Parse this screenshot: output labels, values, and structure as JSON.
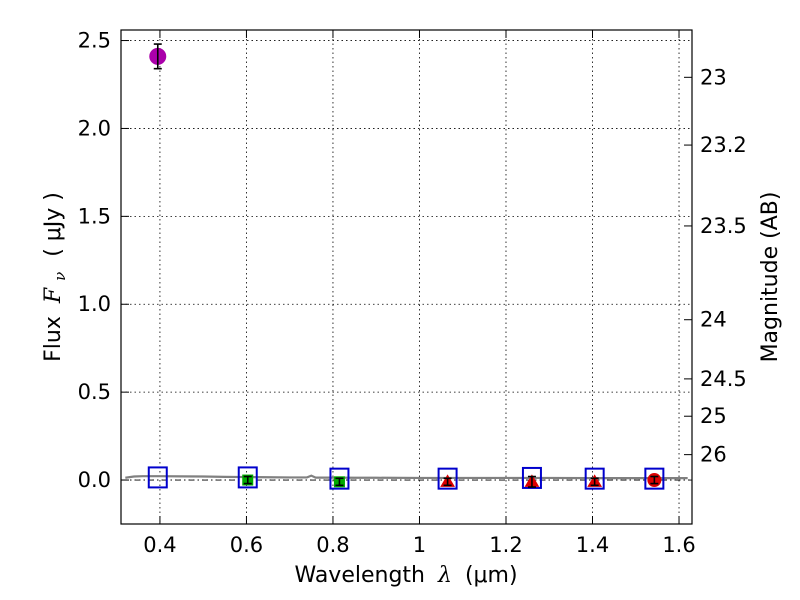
{
  "chart_data": {
    "type": "scatter",
    "xlabel": "Wavelength",
    "xlabel_symbol": "λ",
    "xlabel_unit": "(μm)",
    "ylabel": "Flux",
    "ylabel_symbol": "F",
    "ylabel_subscript": "ν",
    "ylabel_unit": "( μJy )",
    "y2label": "Magnitude (AB)",
    "xlim": [
      0.31,
      1.63
    ],
    "ylim": [
      -0.25,
      2.56
    ],
    "grid": true,
    "x_ticks": [
      {
        "value": 0.4,
        "label": "0.4"
      },
      {
        "value": 0.6,
        "label": "0.6"
      },
      {
        "value": 0.8,
        "label": "0.8"
      },
      {
        "value": 1.0,
        "label": "1"
      },
      {
        "value": 1.2,
        "label": "1.2"
      },
      {
        "value": 1.4,
        "label": "1.4"
      },
      {
        "value": 1.6,
        "label": "1.6"
      }
    ],
    "y_ticks": [
      {
        "value": 0.0,
        "label": "0.0"
      },
      {
        "value": 0.5,
        "label": "0.5"
      },
      {
        "value": 1.0,
        "label": "1.0"
      },
      {
        "value": 1.5,
        "label": "1.5"
      },
      {
        "value": 2.0,
        "label": "2.0"
      },
      {
        "value": 2.5,
        "label": "2.5"
      }
    ],
    "y2_ticks": [
      {
        "mag": 23,
        "label": "23"
      },
      {
        "mag": 23.2,
        "label": "23.2"
      },
      {
        "mag": 23.5,
        "label": "23.5"
      },
      {
        "mag": 24,
        "label": "24"
      },
      {
        "mag": 24.5,
        "label": "24.5"
      },
      {
        "mag": 25,
        "label": "25"
      },
      {
        "mag": 26,
        "label": "26"
      }
    ],
    "model_sed": {
      "color": "#808080",
      "x": [
        0.32,
        0.34,
        0.36,
        0.38,
        0.4,
        0.45,
        0.5,
        0.55,
        0.6,
        0.65,
        0.7,
        0.74,
        0.75,
        0.76,
        0.8,
        0.85,
        0.9,
        1.0,
        1.07,
        1.1,
        1.2,
        1.26,
        1.3,
        1.4,
        1.41,
        1.5,
        1.54,
        1.6,
        1.62
      ],
      "y": [
        0.013,
        0.02,
        0.022,
        0.022,
        0.022,
        0.021,
        0.02,
        0.018,
        0.017,
        0.016,
        0.015,
        0.015,
        0.025,
        0.014,
        0.014,
        0.013,
        0.013,
        0.012,
        0.012,
        0.012,
        0.012,
        0.012,
        0.012,
        0.011,
        0.011,
        0.011,
        0.011,
        0.011,
        0.011
      ]
    },
    "zero_line": {
      "y": 0.0,
      "style": "dash-dot",
      "color": "#000000"
    },
    "model_points": {
      "marker": "square-open",
      "color": "#0000cc",
      "x": [
        0.395,
        0.603,
        0.815,
        1.065,
        1.26,
        1.405,
        1.543
      ],
      "y": [
        0.015,
        0.015,
        0.008,
        0.008,
        0.012,
        0.008,
        0.008
      ]
    },
    "observed": [
      {
        "x": 0.395,
        "y": 2.41,
        "err": 0.07,
        "marker": "circle",
        "color": "#aa00aa",
        "size": "large"
      },
      {
        "x": 0.603,
        "y": 0.0,
        "err": 0.02,
        "marker": "square",
        "color": "#00aa00",
        "size": "small"
      },
      {
        "x": 0.815,
        "y": -0.01,
        "err": 0.02,
        "marker": "square",
        "color": "#00aa00",
        "size": "small"
      },
      {
        "x": 1.065,
        "y": -0.01,
        "err": 0.02,
        "marker": "triangle",
        "color": "#dd0000",
        "size": "small"
      },
      {
        "x": 1.26,
        "y": -0.01,
        "err": 0.03,
        "marker": "triangle",
        "color": "#dd0000",
        "size": "small"
      },
      {
        "x": 1.405,
        "y": -0.01,
        "err": 0.02,
        "marker": "triangle",
        "color": "#dd0000",
        "size": "small"
      },
      {
        "x": 1.543,
        "y": 0.0,
        "err": 0.02,
        "marker": "circle",
        "color": "#dd0000",
        "size": "medium"
      }
    ]
  }
}
